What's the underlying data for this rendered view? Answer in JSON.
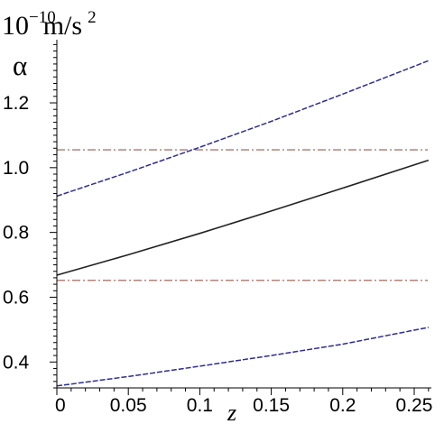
{
  "chart_data": {
    "type": "line",
    "title": "",
    "ylabel": {
      "unit_base": "10",
      "unit_exponent": "−10",
      "unit_rest": "m/s",
      "unit_power": "2",
      "symbol": "α"
    },
    "xlabel": "z",
    "xlim": [
      0,
      0.262
    ],
    "ylim": [
      0.32,
      1.395
    ],
    "x_ticks": [
      {
        "value": 0,
        "label": "0"
      },
      {
        "value": 0.05,
        "label": "0.05"
      },
      {
        "value": 0.1,
        "label": "0.1"
      },
      {
        "value": 0.15,
        "label": "0.15"
      },
      {
        "value": 0.2,
        "label": "0.2"
      },
      {
        "value": 0.25,
        "label": "0.25"
      }
    ],
    "y_ticks": [
      {
        "value": 0.4,
        "label": "0.4"
      },
      {
        "value": 0.6,
        "label": "0.6"
      },
      {
        "value": 0.8,
        "label": "0.8"
      },
      {
        "value": 1.0,
        "label": "1.0"
      },
      {
        "value": 1.2,
        "label": "1.2"
      }
    ],
    "grid": false,
    "series": [
      {
        "role": "upper-bound",
        "style": "dashed",
        "color": "#2d2d96",
        "x": [
          0,
          0.05,
          0.1,
          0.15,
          0.2,
          0.26
        ],
        "y": [
          0.912,
          0.986,
          1.063,
          1.143,
          1.227,
          1.33
        ]
      },
      {
        "role": "central",
        "style": "solid",
        "color": "#222222",
        "x": [
          0,
          0.05,
          0.1,
          0.15,
          0.2,
          0.26
        ],
        "y": [
          0.668,
          0.731,
          0.797,
          0.866,
          0.937,
          1.023
        ]
      },
      {
        "role": "lower-bound",
        "style": "dashed",
        "color": "#2d2d96",
        "x": [
          0,
          0.05,
          0.1,
          0.15,
          0.2,
          0.26
        ],
        "y": [
          0.326,
          0.355,
          0.387,
          0.42,
          0.455,
          0.507
        ]
      }
    ],
    "reference_lines": [
      {
        "role": "upper-reference",
        "y": 1.055,
        "color": "#9b5a4a",
        "style": "dash-dot"
      },
      {
        "role": "lower-reference",
        "y": 0.652,
        "color": "#9b5a4a",
        "style": "dash-dot"
      }
    ]
  }
}
